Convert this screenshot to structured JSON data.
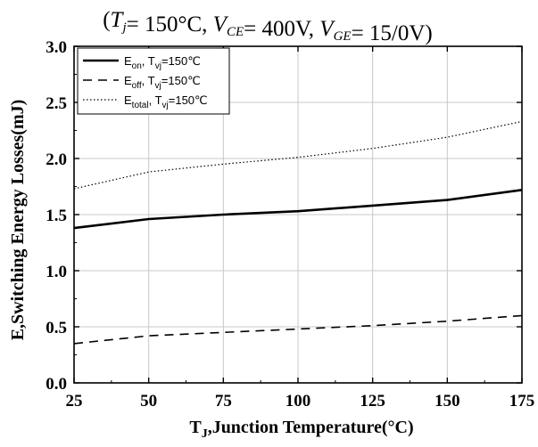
{
  "chart_data": {
    "type": "line",
    "title": "",
    "subtitle": "(Tj= 150°C, VCE= 400V, VGE= 15/0V)",
    "xlabel": "TJ,Junction Temperature(°C)",
    "ylabel": "E,Switching Energy Losses(mJ)",
    "xlim": [
      25,
      175
    ],
    "ylim": [
      0.0,
      3.0
    ],
    "xticks": [
      "25",
      "50",
      "75",
      "100",
      "125",
      "150",
      "175"
    ],
    "yticks": [
      "0.0",
      "0.5",
      "1.0",
      "1.5",
      "2.0",
      "2.5",
      "3.0"
    ],
    "grid": true,
    "legend_position": "top-left",
    "x": [
      25,
      50,
      75,
      100,
      125,
      150,
      175
    ],
    "series": [
      {
        "name": "Eon, Tvj=150℃",
        "values": [
          1.38,
          1.46,
          1.5,
          1.53,
          1.58,
          1.63,
          1.72
        ],
        "style": "solid",
        "color": "#000000"
      },
      {
        "name": "Eoff, Tvj=150℃",
        "values": [
          0.35,
          0.42,
          0.45,
          0.48,
          0.51,
          0.55,
          0.6
        ],
        "style": "dashed",
        "color": "#000000"
      },
      {
        "name": "Etotal, Tvj=150℃",
        "values": [
          1.73,
          1.88,
          1.95,
          2.01,
          2.09,
          2.19,
          2.33
        ],
        "style": "dotted",
        "color": "#000000"
      }
    ]
  }
}
